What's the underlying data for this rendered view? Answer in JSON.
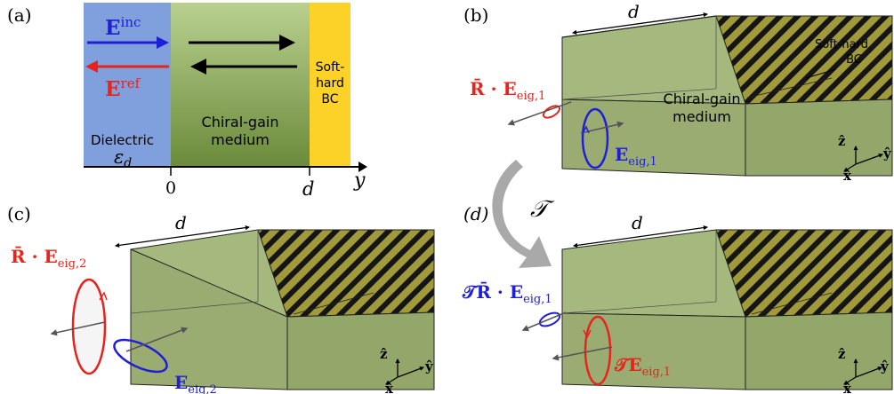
{
  "panels": {
    "a": {
      "label": "(a)",
      "e_inc": "E",
      "e_inc_sup": "inc",
      "e_ref": "E",
      "e_ref_sup": "ref",
      "dielectric_label": "Dielectric",
      "epsilon_label": "ε",
      "epsilon_sub": "d",
      "medium_line1": "Chiral-gain",
      "medium_line2": "medium",
      "bc_line1": "Soft-",
      "bc_line2": "hard",
      "bc_line3": "BC",
      "tick_zero": "0",
      "tick_d": "d",
      "axis_label": "y"
    },
    "b": {
      "label": "(b)",
      "dim_label": "d",
      "bc_line1": "Soft-hard",
      "bc_line2": "BC",
      "medium_line1": "Chiral-gain",
      "medium_line2": "medium",
      "reflected_prefix": "R̄ · E",
      "reflected_sub": "eig,1",
      "incident_prefix": "E",
      "incident_sub": "eig,1",
      "axis_z": "ẑ",
      "axis_x": "x̂",
      "axis_y": "ŷ"
    },
    "c": {
      "label": "(c)",
      "dim_label": "d",
      "reflected_prefix": "R̄ · E",
      "reflected_sub": "eig,2",
      "incident_prefix": "E",
      "incident_sub": "eig,2",
      "axis_z": "ẑ",
      "axis_x": "x̂",
      "axis_y": "ŷ"
    },
    "d": {
      "label": "(d)",
      "dim_label": "d",
      "reflected_prefix": "𝒯R̄ · E",
      "reflected_sub": "eig,1",
      "incident_prefix": "𝒯E",
      "incident_sub": "eig,1",
      "axis_z": "ẑ",
      "axis_x": "x̂",
      "axis_y": "ŷ"
    }
  },
  "transform_label": "𝒯",
  "colors": {
    "dielectric": "#7f9fdd",
    "medium_top": "#b7cf8c",
    "medium_bottom": "#6c8a3b",
    "bc": "#fcd128",
    "box_front": "#9aac72",
    "box_top": "#a5b87e",
    "incident_blue": "#1f1fd6",
    "reflected_red": "#e8231c",
    "arrow_gray": "#a9a9a9"
  }
}
